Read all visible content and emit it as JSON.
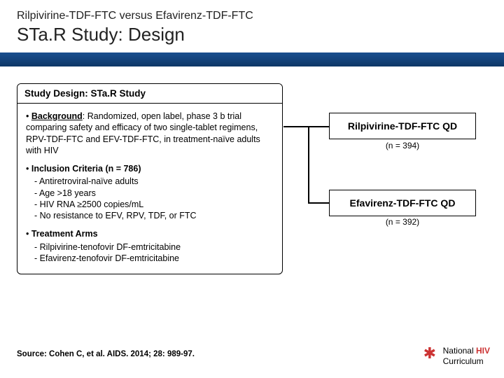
{
  "header": {
    "subtitle": "Rilpivirine-TDF-FTC versus Efavirenz-TDF-FTC",
    "title": "STa.R Study: Design"
  },
  "colors": {
    "bar_gradient_top": "#1a4f8f",
    "bar_gradient_bottom": "#0d3766",
    "text": "#000000",
    "accent_red": "#cc3333",
    "box_border": "#000000",
    "background": "#ffffff"
  },
  "study": {
    "heading": "Study Design: STa.R Study",
    "background": {
      "label": "Background",
      "text": ": Randomized, open label, phase 3 b trial comparing safety and efficacy of two single-tablet regimens, RPV-TDF-FTC and EFV-TDF-FTC, in treatment-naïve adults with HIV"
    },
    "inclusion": {
      "label": "Inclusion Criteria (n = 786)",
      "items": [
        "- Antiretroviral-naïve adults",
        "- Age >18 years",
        "- HIV RNA ≥2500 copies/mL",
        "- No resistance to EFV, RPV, TDF, or FTC"
      ]
    },
    "treatment": {
      "label": "Treatment Arms",
      "items": [
        "- Rilpivirine-tenofovir DF-emtricitabine",
        "- Efavirenz-tenofovir DF-emtricitabine"
      ]
    }
  },
  "arms": {
    "arm1": {
      "title": "Rilpivirine-TDF-FTC QD",
      "n": "(n = 394)"
    },
    "arm2": {
      "title": "Efavirenz-TDF-FTC QD",
      "n": "(n = 392)"
    }
  },
  "source": "Source: Cohen C, et al. AIDS. 2014; 28: 989-97.",
  "logo": {
    "line1a": "National ",
    "line1b": "HIV",
    "line2": "Curriculum"
  }
}
